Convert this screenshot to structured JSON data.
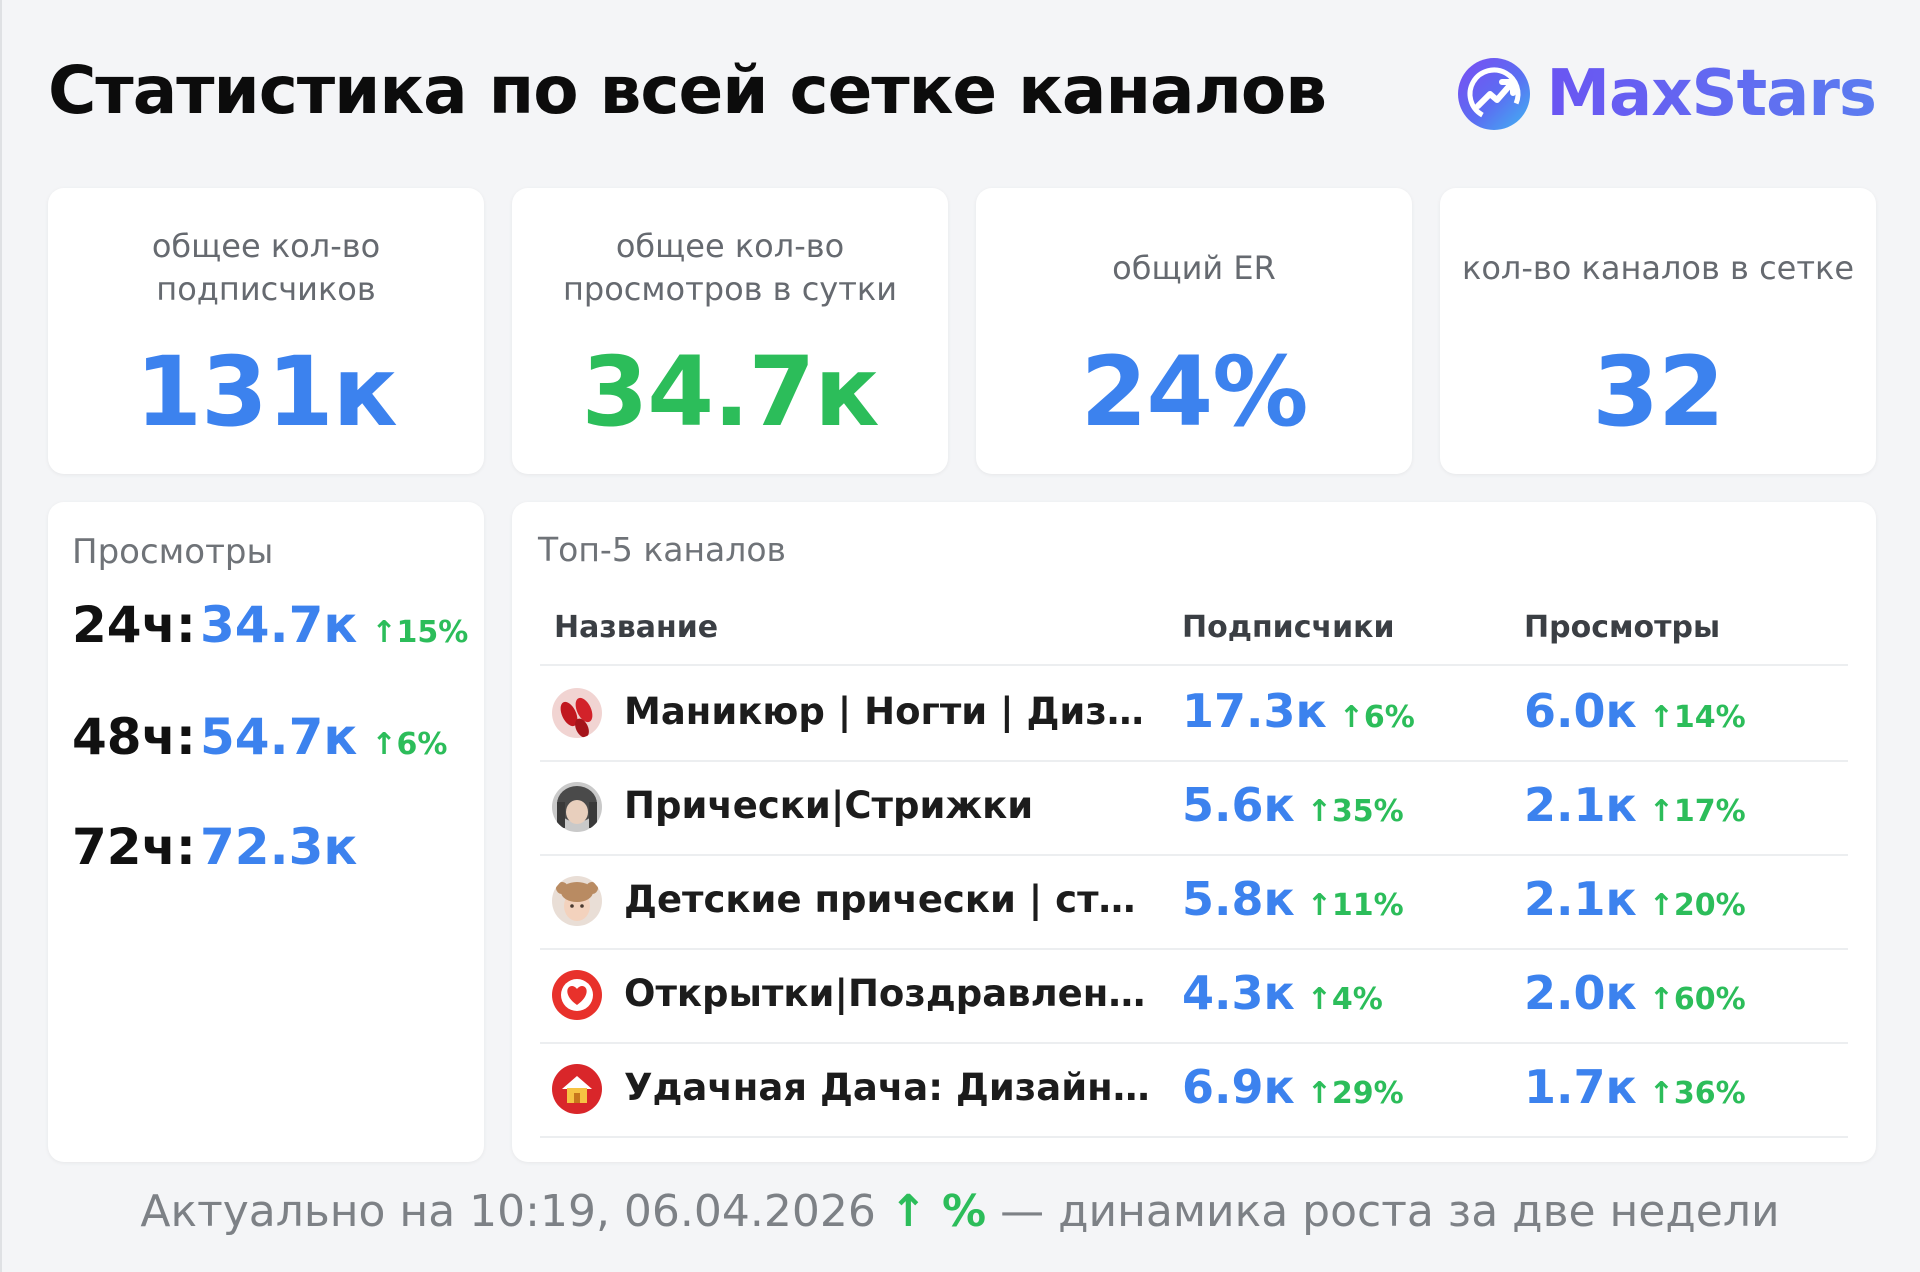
{
  "page": {
    "title": "Статистика по всей сетке каналов",
    "brand": "MaxStars"
  },
  "stats": [
    {
      "label": "общее кол-во подписчиков",
      "value": "131к",
      "color": "#3c82ee"
    },
    {
      "label": "общее кол-во просмотров в сутки",
      "value": "34.7к",
      "color": "#2cbd5a"
    },
    {
      "label": "общий ER",
      "value": "24%",
      "color": "#3c82ee"
    },
    {
      "label": "кол-во каналов в сетке",
      "value": "32",
      "color": "#3c82ee"
    }
  ],
  "views": {
    "title": "Просмотры",
    "rows": [
      {
        "period": "24ч:",
        "value": "34.7к",
        "delta": "↑15%"
      },
      {
        "period": "48ч:",
        "value": "54.7к",
        "delta": "↑6%"
      },
      {
        "period": "72ч:",
        "value": "72.3к",
        "delta": ""
      }
    ]
  },
  "top": {
    "title": "Топ-5 каналов",
    "headers": {
      "name": "Название",
      "subs": "Подписчики",
      "views": "Просмотры"
    },
    "rows": [
      {
        "name": "Маникюр | Ногти | Дизайн ногтей",
        "subs": "17.3к",
        "subs_delta": "↑6%",
        "views": "6.0к",
        "views_delta": "↑14%",
        "icon": "nails-avatar-icon"
      },
      {
        "name": "Прически|Стрижки",
        "subs": "5.6к",
        "subs_delta": "↑35%",
        "views": "2.1к",
        "views_delta": "↑17%",
        "icon": "haircut-avatar-icon"
      },
      {
        "name": "Детские прически | стрижки",
        "subs": "5.8к",
        "subs_delta": "↑11%",
        "views": "2.1к",
        "views_delta": "↑20%",
        "icon": "child-avatar-icon"
      },
      {
        "name": "Открытки|Поздравления | Пожелания",
        "subs": "4.3к",
        "subs_delta": "↑4%",
        "views": "2.0к",
        "views_delta": "↑60%",
        "icon": "heart-card-avatar-icon"
      },
      {
        "name": "Удачная Дача: Дизайн сада",
        "subs": "6.9к",
        "subs_delta": "↑29%",
        "views": "1.7к",
        "views_delta": "↑36%",
        "icon": "house-avatar-icon"
      }
    ]
  },
  "footer": {
    "prefix": "Актуально на 10:19, 06.04.2026",
    "arrow": "↑ %",
    "suffix": "— динамика роста за две недели"
  }
}
